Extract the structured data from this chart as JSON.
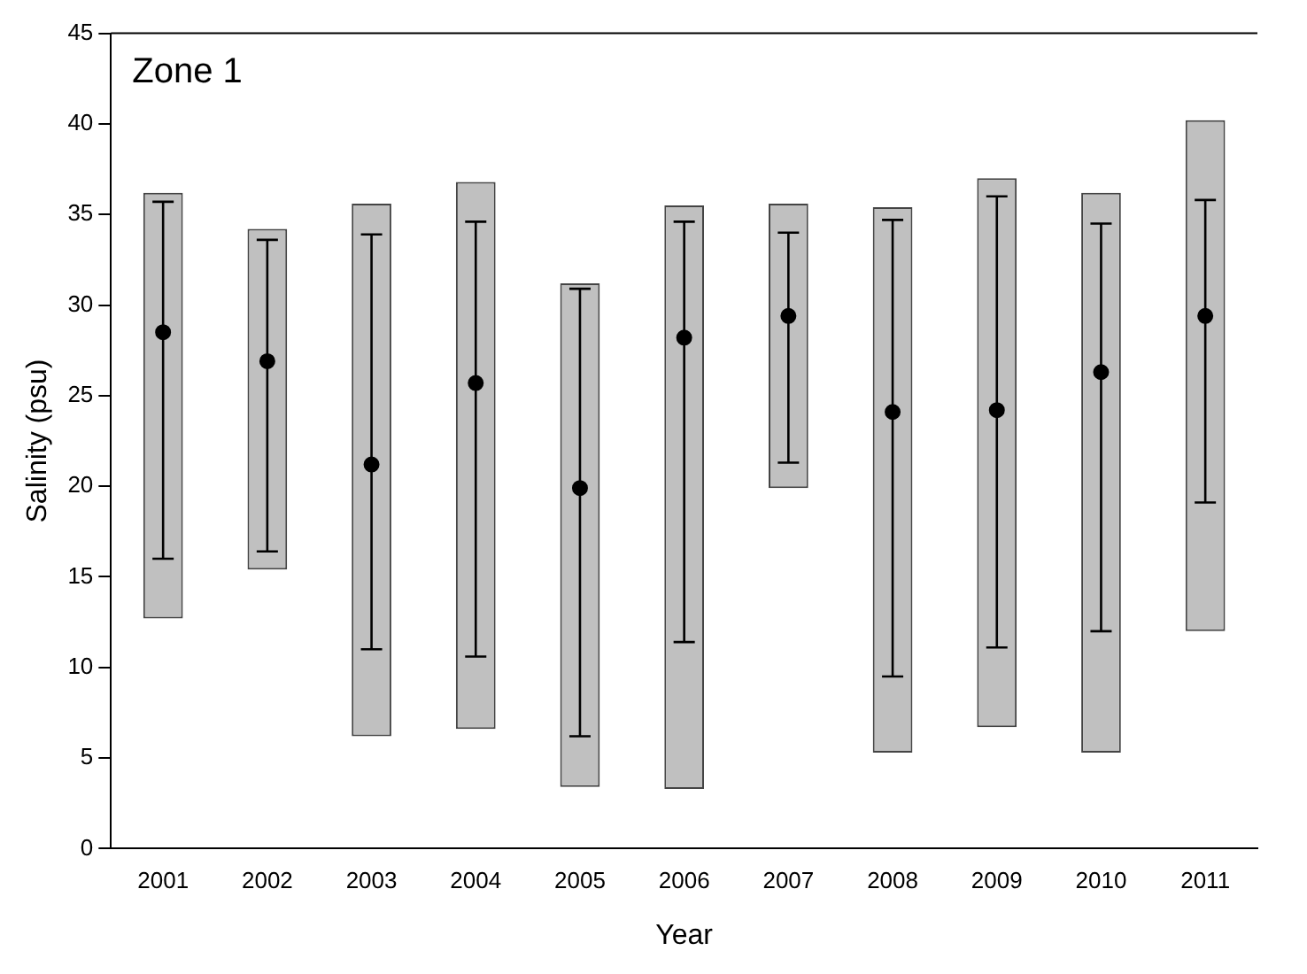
{
  "chart_data": {
    "type": "bar",
    "categories": [
      "2001",
      "2002",
      "2003",
      "2004",
      "2005",
      "2006",
      "2007",
      "2008",
      "2009",
      "2010",
      "2011"
    ],
    "xlabel": "Year",
    "ylabel": "Salinity (psu)",
    "annotations": [
      "Zone 1"
    ],
    "ylim": [
      0,
      45
    ],
    "yticks": [
      0,
      5,
      10,
      15,
      20,
      25,
      30,
      35,
      40,
      45
    ],
    "grid": false,
    "legend": false,
    "series": [
      {
        "color": "#c0c0c0",
        "base": [
          12.7,
          15.4,
          6.2,
          6.6,
          3.4,
          3.3,
          19.9,
          5.3,
          6.7,
          5.3,
          12.0
        ],
        "values": [
          23.5,
          18.8,
          29.4,
          30.2,
          27.8,
          32.2,
          15.7,
          30.1,
          30.3,
          30.9,
          28.2
        ]
      },
      {
        "type": "scatter",
        "color": "#000000",
        "marker": "circle",
        "values": [
          28.5,
          26.9,
          21.2,
          25.7,
          19.9,
          28.2,
          29.4,
          24.1,
          24.2,
          26.3,
          29.4
        ],
        "errors": [
          [
            16.0,
            35.7
          ],
          [
            16.4,
            33.6
          ],
          [
            11.0,
            33.9
          ],
          [
            10.6,
            34.6
          ],
          [
            6.2,
            30.9
          ],
          [
            11.4,
            34.6
          ],
          [
            21.3,
            34.0
          ],
          [
            9.5,
            34.7
          ],
          [
            11.1,
            36.0
          ],
          [
            12.0,
            34.5
          ],
          [
            19.1,
            35.8
          ]
        ]
      }
    ]
  }
}
